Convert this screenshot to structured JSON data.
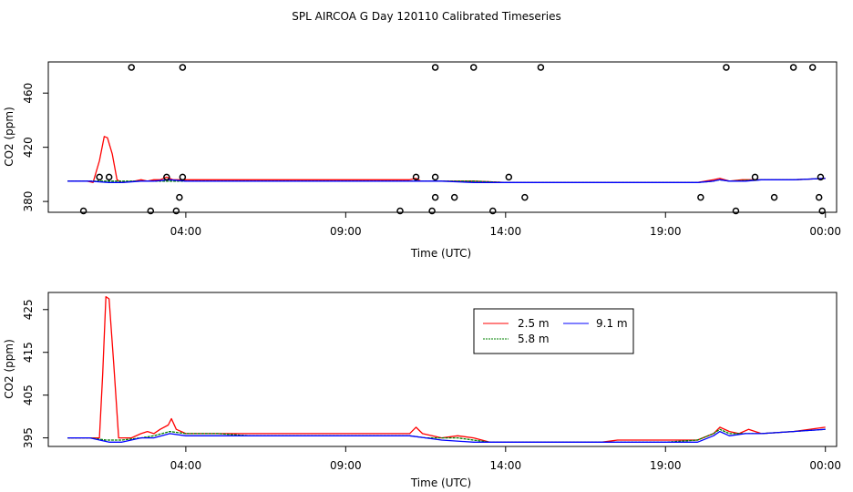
{
  "title": "SPL AIRCOA G  Day 120110  Calibrated Timeseries",
  "chart_data": [
    {
      "type": "line",
      "panel": "top",
      "xlabel": "Time (UTC)",
      "ylabel": "CO2 (ppm)",
      "xticks": [
        {
          "h": 4,
          "label": "04:00"
        },
        {
          "h": 9,
          "label": "09:00"
        },
        {
          "h": 14,
          "label": "14:00"
        },
        {
          "h": 19,
          "label": "19:00"
        },
        {
          "h": 24,
          "label": "00:00"
        }
      ],
      "yticks": [
        380,
        420,
        460
      ],
      "xlim": [
        -0.3,
        24.35
      ],
      "ylim": [
        372,
        483
      ],
      "series": [
        {
          "name": "2.5 m",
          "color": "#ff0000",
          "points": [
            [
              0.3,
              395
            ],
            [
              0.9,
              395
            ],
            [
              1.1,
              394
            ],
            [
              1.3,
              410
            ],
            [
              1.45,
              428
            ],
            [
              1.55,
              427
            ],
            [
              1.7,
              415
            ],
            [
              1.85,
              396
            ],
            [
              2.0,
              394
            ],
            [
              2.4,
              395
            ],
            [
              2.6,
              396
            ],
            [
              2.8,
              395
            ],
            [
              3.0,
              396
            ],
            [
              3.2,
              396
            ],
            [
              3.4,
              398
            ],
            [
              3.6,
              396
            ],
            [
              4.0,
              396
            ],
            [
              5.0,
              396
            ],
            [
              6.0,
              396
            ],
            [
              7.0,
              396
            ],
            [
              7.5,
              396
            ],
            [
              8.0,
              396
            ],
            [
              10.0,
              396
            ],
            [
              11.0,
              396
            ],
            [
              11.2,
              397
            ],
            [
              11.35,
              395
            ],
            [
              12.0,
              395
            ],
            [
              13.0,
              395
            ],
            [
              14.0,
              394
            ],
            [
              15.0,
              394
            ],
            [
              16.0,
              394
            ],
            [
              17.0,
              394
            ],
            [
              18.0,
              394
            ],
            [
              19.0,
              394
            ],
            [
              20.0,
              394
            ],
            [
              20.5,
              396
            ],
            [
              20.7,
              397
            ],
            [
              21.0,
              395
            ],
            [
              21.4,
              396
            ],
            [
              22.0,
              396
            ],
            [
              23.0,
              396
            ],
            [
              24.0,
              397
            ]
          ]
        },
        {
          "name": "5.8 m",
          "color": "#008000",
          "points": [
            [
              0.3,
              395
            ],
            [
              1.0,
              395
            ],
            [
              2.0,
              395
            ],
            [
              3.0,
              395
            ],
            [
              4.0,
              395
            ],
            [
              5.0,
              395
            ],
            [
              6.0,
              395
            ],
            [
              7.0,
              395
            ],
            [
              8.0,
              395
            ],
            [
              9.0,
              395
            ],
            [
              10.0,
              395
            ],
            [
              11.0,
              395
            ],
            [
              12.0,
              395
            ],
            [
              13.0,
              395
            ],
            [
              14.0,
              394
            ],
            [
              15.0,
              394
            ],
            [
              16.0,
              394
            ],
            [
              17.0,
              394
            ],
            [
              18.0,
              394
            ],
            [
              19.0,
              394
            ],
            [
              20.0,
              394
            ],
            [
              20.5,
              395
            ],
            [
              20.7,
              396
            ],
            [
              21.0,
              395
            ],
            [
              22.0,
              396
            ],
            [
              23.0,
              396
            ],
            [
              24.0,
              397
            ]
          ]
        },
        {
          "name": "9.1 m",
          "color": "#0000ff",
          "points": [
            [
              0.3,
              395
            ],
            [
              1.0,
              395
            ],
            [
              1.6,
              394
            ],
            [
              2.0,
              394
            ],
            [
              2.6,
              395
            ],
            [
              3.0,
              395
            ],
            [
              3.5,
              396
            ],
            [
              4.0,
              395
            ],
            [
              5.0,
              395
            ],
            [
              6.0,
              395
            ],
            [
              7.0,
              395
            ],
            [
              8.0,
              395
            ],
            [
              9.0,
              395
            ],
            [
              10.0,
              395
            ],
            [
              11.0,
              395
            ],
            [
              11.5,
              395
            ],
            [
              12.0,
              395
            ],
            [
              13.0,
              394
            ],
            [
              14.0,
              394
            ],
            [
              15.0,
              394
            ],
            [
              16.0,
              394
            ],
            [
              17.0,
              394
            ],
            [
              18.0,
              394
            ],
            [
              19.0,
              394
            ],
            [
              20.0,
              394
            ],
            [
              20.5,
              395
            ],
            [
              20.7,
              396
            ],
            [
              21.0,
              395
            ],
            [
              21.5,
              395
            ],
            [
              22.0,
              396
            ],
            [
              23.0,
              396
            ],
            [
              24.0,
              397
            ]
          ]
        }
      ],
      "outliers": [
        [
          0.8,
          373
        ],
        [
          1.3,
          398
        ],
        [
          1.6,
          398
        ],
        [
          2.3,
          479
        ],
        [
          2.9,
          373
        ],
        [
          3.4,
          398
        ],
        [
          3.7,
          373
        ],
        [
          3.8,
          383
        ],
        [
          3.9,
          398
        ],
        [
          3.9,
          479
        ],
        [
          10.7,
          373
        ],
        [
          11.2,
          398
        ],
        [
          11.7,
          373
        ],
        [
          11.8,
          383
        ],
        [
          11.8,
          398
        ],
        [
          11.8,
          479
        ],
        [
          12.4,
          383
        ],
        [
          13.0,
          479
        ],
        [
          13.6,
          373
        ],
        [
          14.1,
          398
        ],
        [
          14.6,
          383
        ],
        [
          15.1,
          479
        ],
        [
          20.1,
          383
        ],
        [
          20.9,
          479
        ],
        [
          21.2,
          373
        ],
        [
          21.8,
          398
        ],
        [
          22.4,
          383
        ],
        [
          23.0,
          479
        ],
        [
          23.6,
          479
        ],
        [
          23.8,
          383
        ],
        [
          23.9,
          373
        ],
        [
          23.85,
          398
        ]
      ]
    },
    {
      "type": "line",
      "panel": "bottom",
      "xlabel": "Time (UTC)",
      "ylabel": "CO2 (ppm)",
      "xticks": [
        {
          "h": 4,
          "label": "04:00"
        },
        {
          "h": 9,
          "label": "09:00"
        },
        {
          "h": 14,
          "label": "14:00"
        },
        {
          "h": 19,
          "label": "19:00"
        },
        {
          "h": 24,
          "label": "00:00"
        }
      ],
      "yticks": [
        395,
        405,
        415,
        425
      ],
      "xlim": [
        -0.3,
        24.35
      ],
      "ylim": [
        393,
        429
      ],
      "legend": {
        "position": "top-right",
        "entries": [
          "2.5 m",
          "5.8 m",
          "9.1 m"
        ]
      },
      "series": [
        {
          "name": "2.5 m",
          "color": "#ff0000",
          "points": [
            [
              0.3,
              395
            ],
            [
              0.8,
              395
            ],
            [
              1.1,
              395
            ],
            [
              1.3,
              395
            ],
            [
              1.4,
              410
            ],
            [
              1.5,
              428
            ],
            [
              1.6,
              427.5
            ],
            [
              1.75,
              412
            ],
            [
              1.9,
              395
            ],
            [
              2.3,
              395
            ],
            [
              2.6,
              396
            ],
            [
              2.8,
              396.5
            ],
            [
              3.0,
              396
            ],
            [
              3.2,
              397
            ],
            [
              3.45,
              398
            ],
            [
              3.55,
              399.5
            ],
            [
              3.7,
              397
            ],
            [
              4.0,
              396
            ],
            [
              5.0,
              396
            ],
            [
              6.0,
              396
            ],
            [
              7.0,
              396
            ],
            [
              8.0,
              396
            ],
            [
              9.0,
              396
            ],
            [
              10.0,
              396
            ],
            [
              11.0,
              396
            ],
            [
              11.2,
              397.5
            ],
            [
              11.4,
              396
            ],
            [
              12.0,
              395
            ],
            [
              12.5,
              395.5
            ],
            [
              13.0,
              395
            ],
            [
              13.5,
              394
            ],
            [
              14.0,
              394
            ],
            [
              15.0,
              394
            ],
            [
              16.0,
              394
            ],
            [
              17.0,
              394
            ],
            [
              17.5,
              394.5
            ],
            [
              18.0,
              394.5
            ],
            [
              19.0,
              394.5
            ],
            [
              20.0,
              394.5
            ],
            [
              20.5,
              396
            ],
            [
              20.7,
              397.5
            ],
            [
              21.0,
              396.5
            ],
            [
              21.3,
              396
            ],
            [
              21.6,
              397
            ],
            [
              22.0,
              396
            ],
            [
              23.0,
              396.5
            ],
            [
              24.0,
              397.5
            ]
          ]
        },
        {
          "name": "5.8 m",
          "color": "#008000",
          "points": [
            [
              0.3,
              395
            ],
            [
              1.0,
              395
            ],
            [
              1.5,
              394.5
            ],
            [
              2.0,
              394.5
            ],
            [
              2.6,
              395
            ],
            [
              3.0,
              395.5
            ],
            [
              3.5,
              396.5
            ],
            [
              4.0,
              396
            ],
            [
              5.0,
              396
            ],
            [
              6.0,
              395.5
            ],
            [
              7.0,
              395.5
            ],
            [
              8.0,
              395.5
            ],
            [
              9.0,
              395.5
            ],
            [
              10.0,
              395.5
            ],
            [
              11.0,
              395.5
            ],
            [
              11.5,
              395
            ],
            [
              12.0,
              395
            ],
            [
              12.5,
              395
            ],
            [
              13.0,
              394.5
            ],
            [
              13.5,
              394
            ],
            [
              14.0,
              394
            ],
            [
              15.0,
              394
            ],
            [
              16.0,
              394
            ],
            [
              17.0,
              394
            ],
            [
              18.0,
              394
            ],
            [
              19.0,
              394
            ],
            [
              20.0,
              394.5
            ],
            [
              20.5,
              396
            ],
            [
              20.7,
              397
            ],
            [
              21.0,
              396
            ],
            [
              21.5,
              396
            ],
            [
              22.0,
              396
            ],
            [
              23.0,
              396.5
            ],
            [
              24.0,
              397
            ]
          ]
        },
        {
          "name": "9.1 m",
          "color": "#0000ff",
          "points": [
            [
              0.3,
              395
            ],
            [
              1.0,
              395
            ],
            [
              1.6,
              394
            ],
            [
              2.0,
              394
            ],
            [
              2.6,
              395
            ],
            [
              3.0,
              395
            ],
            [
              3.5,
              396
            ],
            [
              4.0,
              395.5
            ],
            [
              5.0,
              395.5
            ],
            [
              6.0,
              395.5
            ],
            [
              7.0,
              395.5
            ],
            [
              8.0,
              395.5
            ],
            [
              9.0,
              395.5
            ],
            [
              10.0,
              395.5
            ],
            [
              11.0,
              395.5
            ],
            [
              11.5,
              395
            ],
            [
              12.0,
              394.5
            ],
            [
              13.0,
              394
            ],
            [
              14.0,
              394
            ],
            [
              15.0,
              394
            ],
            [
              16.0,
              394
            ],
            [
              17.0,
              394
            ],
            [
              18.0,
              394
            ],
            [
              19.0,
              394
            ],
            [
              20.0,
              394
            ],
            [
              20.5,
              395.5
            ],
            [
              20.7,
              396.5
            ],
            [
              21.0,
              395.5
            ],
            [
              21.5,
              396
            ],
            [
              22.0,
              396
            ],
            [
              23.0,
              396.5
            ],
            [
              24.0,
              397
            ]
          ]
        }
      ]
    }
  ]
}
